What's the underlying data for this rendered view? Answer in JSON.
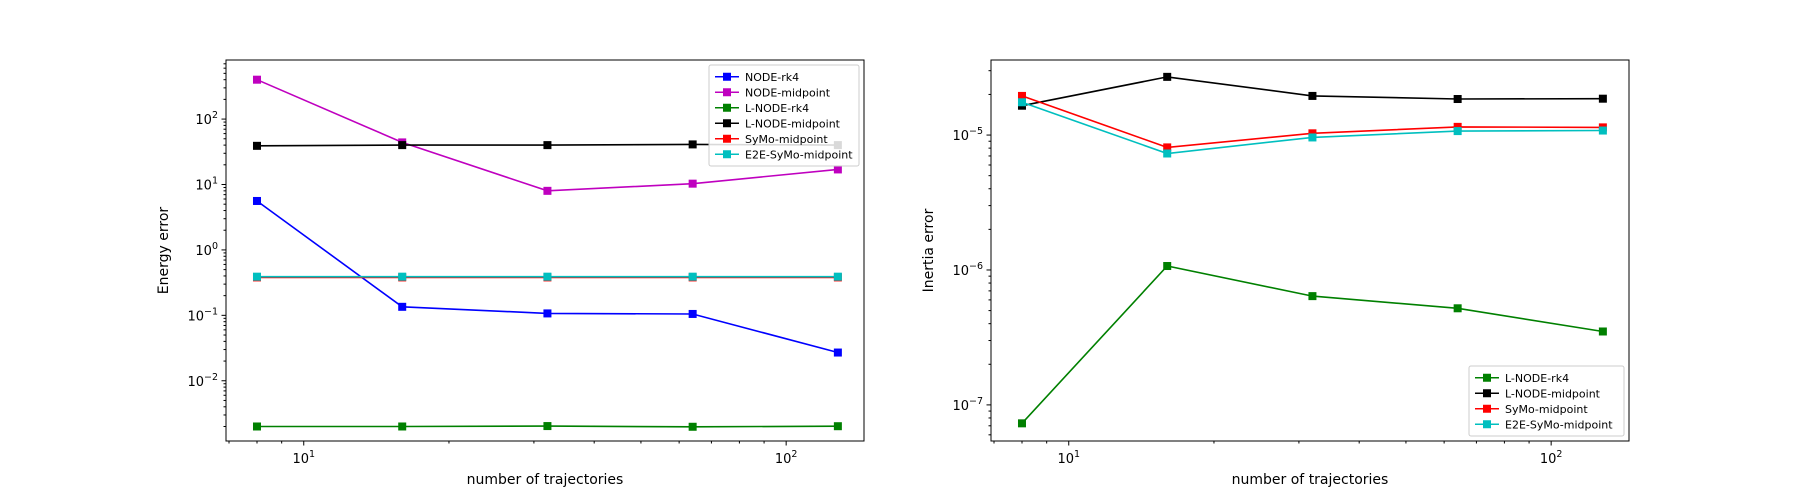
{
  "chart_data": [
    {
      "type": "line",
      "xscale": "log",
      "yscale": "log",
      "xlim": [
        6.9,
        145
      ],
      "ylim": [
        0.0012,
        800
      ],
      "xlabel": "number of trajectories",
      "ylabel": "Energy error",
      "x": [
        8,
        16,
        32,
        64,
        128
      ],
      "x_ticks": [
        10,
        100
      ],
      "x_tick_labels": [
        {
          "base": "10",
          "exp": "1"
        },
        {
          "base": "10",
          "exp": "2"
        }
      ],
      "y_ticks": [
        0.01,
        0.1,
        1,
        10,
        100
      ],
      "y_tick_labels": [
        {
          "base": "10",
          "exp": "−2"
        },
        {
          "base": "10",
          "exp": "−1"
        },
        {
          "base": "10",
          "exp": "0"
        },
        {
          "base": "10",
          "exp": "1"
        },
        {
          "base": "10",
          "exp": "2"
        }
      ],
      "legend": "upper right",
      "series": [
        {
          "name": "NODE-rk4",
          "color": "#0000ff",
          "values": [
            5.6,
            0.135,
            0.107,
            0.105,
            0.027
          ]
        },
        {
          "name": "NODE-midpoint",
          "color": "#bf00bf",
          "values": [
            400,
            44,
            8.0,
            10.3,
            17
          ]
        },
        {
          "name": "L-NODE-rk4",
          "color": "#008000",
          "values": [
            0.002,
            0.002,
            0.00203,
            0.00198,
            0.00202
          ]
        },
        {
          "name": "L-NODE-midpoint",
          "color": "#000000",
          "values": [
            39,
            40,
            40,
            41,
            40
          ]
        },
        {
          "name": "SyMo-midpoint",
          "color": "#ff0000",
          "values": [
            0.38,
            0.38,
            0.38,
            0.38,
            0.38
          ]
        },
        {
          "name": "E2E-SyMo-midpoint",
          "color": "#00bfbf",
          "values": [
            0.39,
            0.39,
            0.39,
            0.39,
            0.39
          ]
        }
      ]
    },
    {
      "type": "line",
      "xscale": "log",
      "yscale": "log",
      "xlim": [
        6.9,
        145
      ],
      "ylim": [
        5.4e-08,
        3.6e-05
      ],
      "xlabel": "number of trajectories",
      "ylabel": "Inertia error",
      "x": [
        8,
        16,
        32,
        64,
        128
      ],
      "x_ticks": [
        10,
        100
      ],
      "x_tick_labels": [
        {
          "base": "10",
          "exp": "1"
        },
        {
          "base": "10",
          "exp": "2"
        }
      ],
      "y_ticks": [
        1e-07,
        1e-06,
        1e-05
      ],
      "y_tick_labels": [
        {
          "base": "10",
          "exp": "−7"
        },
        {
          "base": "10",
          "exp": "−6"
        },
        {
          "base": "10",
          "exp": "−5"
        }
      ],
      "legend": "lower right",
      "series": [
        {
          "name": "L-NODE-rk4",
          "color": "#008000",
          "values": [
            7.3e-08,
            1.07e-06,
            6.4e-07,
            5.2e-07,
            3.5e-07
          ]
        },
        {
          "name": "L-NODE-midpoint",
          "color": "#000000",
          "values": [
            1.65e-05,
            2.7e-05,
            1.95e-05,
            1.85e-05,
            1.86e-05
          ]
        },
        {
          "name": "SyMo-midpoint",
          "color": "#ff0000",
          "values": [
            1.95e-05,
            8.1e-06,
            1.03e-05,
            1.15e-05,
            1.14e-05
          ]
        },
        {
          "name": "E2E-SyMo-midpoint",
          "color": "#00bfbf",
          "values": [
            1.75e-05,
            7.3e-06,
            9.6e-06,
            1.07e-05,
            1.08e-05
          ]
        }
      ]
    }
  ]
}
